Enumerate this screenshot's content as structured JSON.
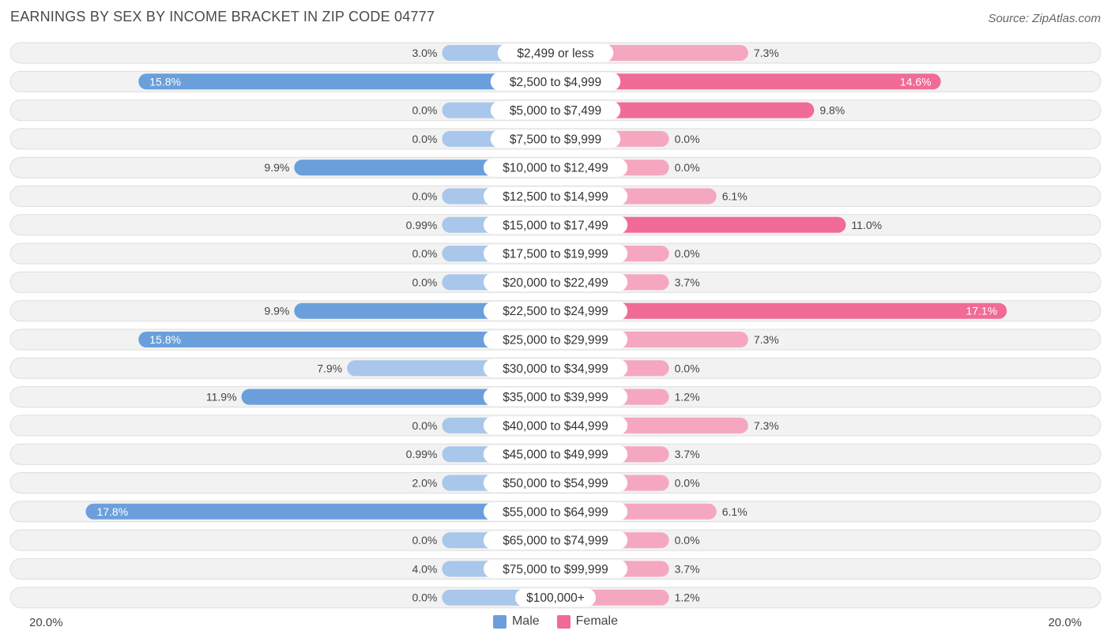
{
  "header": {
    "title": "EARNINGS BY SEX BY INCOME BRACKET IN ZIP CODE 04777",
    "source": "Source: ZipAtlas.com"
  },
  "legend": {
    "male_label": "Male",
    "female_label": "Female"
  },
  "axis": {
    "left_label": "20.0%",
    "right_label": "20.0%"
  },
  "colors": {
    "male_strong": "#6a9fdb",
    "male_light": "#a8c7ea",
    "female_strong": "#f06b95",
    "female_light": "#f5a7c0",
    "row_bg": "#f2f2f2",
    "row_border": "#dedede"
  },
  "chart_data": {
    "type": "bar",
    "orientation": "horizontal-diverging",
    "title": "EARNINGS BY SEX BY INCOME BRACKET IN ZIP CODE 04777",
    "xlim": [
      -20,
      20
    ],
    "categories": [
      "$2,499 or less",
      "$2,500 to $4,999",
      "$5,000 to $7,499",
      "$7,500 to $9,999",
      "$10,000 to $12,499",
      "$12,500 to $14,999",
      "$15,000 to $17,499",
      "$17,500 to $19,999",
      "$20,000 to $22,499",
      "$22,500 to $24,999",
      "$25,000 to $29,999",
      "$30,000 to $34,999",
      "$35,000 to $39,999",
      "$40,000 to $44,999",
      "$45,000 to $49,999",
      "$50,000 to $54,999",
      "$55,000 to $64,999",
      "$65,000 to $74,999",
      "$75,000 to $99,999",
      "$100,000+"
    ],
    "series": [
      {
        "name": "Male",
        "values": [
          3.0,
          15.8,
          0.0,
          0.0,
          9.9,
          0.0,
          0.99,
          0.0,
          0.0,
          9.9,
          15.8,
          7.9,
          11.9,
          0.0,
          0.99,
          2.0,
          17.8,
          0.0,
          4.0,
          0.0
        ],
        "labels": [
          "3.0%",
          "15.8%",
          "0.0%",
          "0.0%",
          "9.9%",
          "0.0%",
          "0.99%",
          "0.0%",
          "0.0%",
          "9.9%",
          "15.8%",
          "7.9%",
          "11.9%",
          "0.0%",
          "0.99%",
          "2.0%",
          "17.8%",
          "0.0%",
          "4.0%",
          "0.0%"
        ]
      },
      {
        "name": "Female",
        "values": [
          7.3,
          14.6,
          9.8,
          0.0,
          0.0,
          6.1,
          11.0,
          0.0,
          3.7,
          17.1,
          7.3,
          0.0,
          1.2,
          7.3,
          3.7,
          0.0,
          6.1,
          0.0,
          3.7,
          1.2
        ],
        "labels": [
          "7.3%",
          "14.6%",
          "9.8%",
          "0.0%",
          "0.0%",
          "6.1%",
          "11.0%",
          "0.0%",
          "3.7%",
          "17.1%",
          "7.3%",
          "0.0%",
          "1.2%",
          "7.3%",
          "3.7%",
          "0.0%",
          "6.1%",
          "0.0%",
          "3.7%",
          "1.2%"
        ]
      }
    ],
    "legend_position": "bottom-center"
  }
}
